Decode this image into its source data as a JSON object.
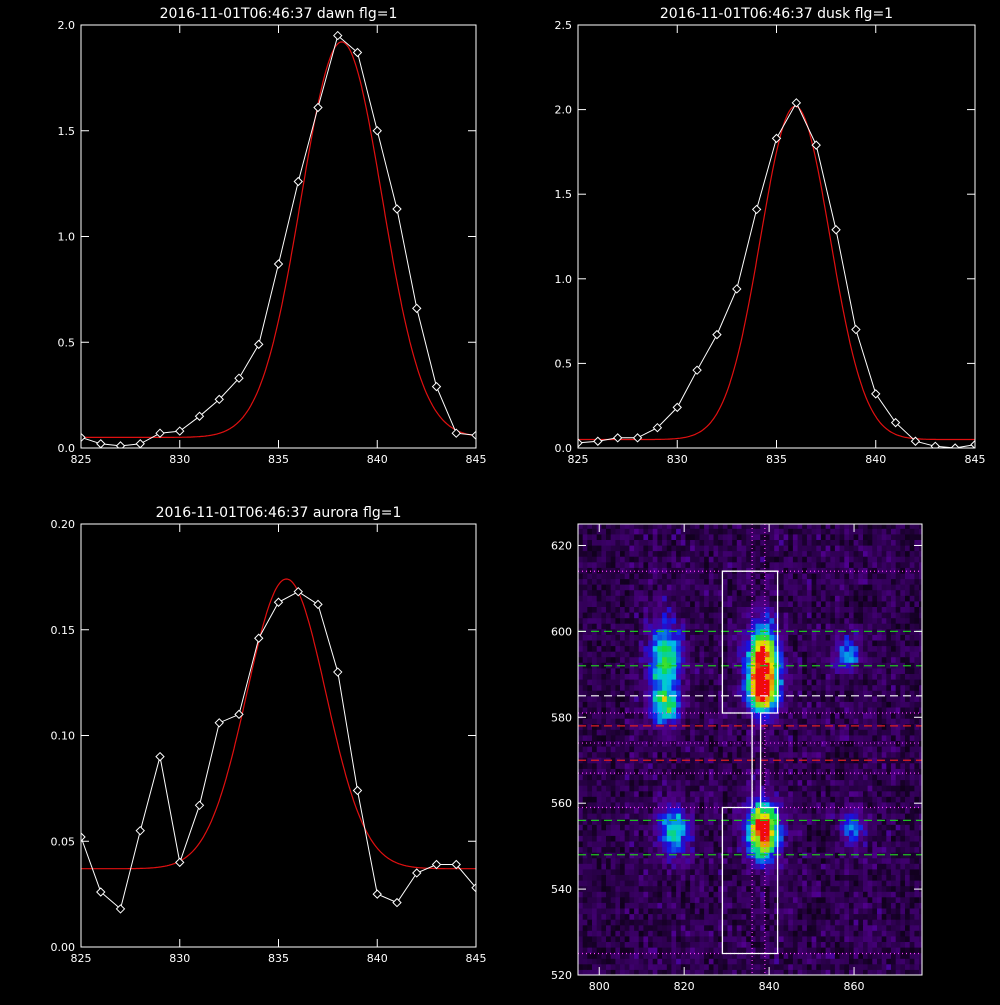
{
  "chart_data": [
    {
      "type": "line",
      "title": "2016-11-01T06:46:37 dawn flg=1",
      "xlim": [
        825,
        845
      ],
      "ylim": [
        0.0,
        2.0
      ],
      "xticks": [
        "825",
        "830",
        "835",
        "840",
        "845"
      ],
      "yticks": [
        "0.0",
        "0.5",
        "1.0",
        "1.5",
        "2.0"
      ],
      "colors": {
        "data": "#ffffff",
        "fit": "#e01010",
        "axes": "#ffffff"
      },
      "series": [
        {
          "kind": "data-with-diamonds",
          "x": [
            825,
            826,
            827,
            828,
            829,
            830,
            831,
            832,
            833,
            834,
            835,
            836,
            837,
            838,
            839,
            840,
            841,
            842,
            843,
            844,
            845
          ],
          "y": [
            0.05,
            0.02,
            0.01,
            0.02,
            0.07,
            0.08,
            0.15,
            0.23,
            0.33,
            0.49,
            0.87,
            1.26,
            1.61,
            1.95,
            1.87,
            1.5,
            1.13,
            0.66,
            0.29,
            0.07,
            0.06
          ]
        },
        {
          "kind": "gaussian-fit",
          "amplitude": 1.87,
          "center": 838.2,
          "sigma": 2.05,
          "baseline": 0.05
        }
      ]
    },
    {
      "type": "line",
      "title": "2016-11-01T06:46:37 dusk flg=1",
      "xlim": [
        825,
        845
      ],
      "ylim": [
        0.0,
        2.5
      ],
      "xticks": [
        "825",
        "830",
        "835",
        "840",
        "845"
      ],
      "yticks": [
        "0.0",
        "0.5",
        "1.0",
        "1.5",
        "2.0",
        "2.5"
      ],
      "colors": {
        "data": "#ffffff",
        "fit": "#e01010",
        "axes": "#ffffff"
      },
      "series": [
        {
          "kind": "data-with-diamonds",
          "x": [
            825,
            826,
            827,
            828,
            829,
            830,
            831,
            832,
            833,
            834,
            835,
            836,
            837,
            838,
            839,
            840,
            841,
            842,
            843,
            844,
            845
          ],
          "y": [
            0.03,
            0.04,
            0.06,
            0.06,
            0.12,
            0.24,
            0.46,
            0.67,
            0.94,
            1.41,
            1.83,
            2.04,
            1.79,
            1.29,
            0.7,
            0.32,
            0.15,
            0.04,
            0.01,
            0.0,
            0.02
          ]
        },
        {
          "kind": "gaussian-fit",
          "amplitude": 1.97,
          "center": 835.95,
          "sigma": 1.75,
          "baseline": 0.05
        }
      ]
    },
    {
      "type": "line",
      "title": "2016-11-01T06:46:37 aurora flg=1",
      "xlim": [
        825,
        845
      ],
      "ylim": [
        0.0,
        0.2
      ],
      "xticks": [
        "825",
        "830",
        "835",
        "840",
        "845"
      ],
      "yticks": [
        "0.00",
        "0.05",
        "0.10",
        "0.15",
        "0.20"
      ],
      "colors": {
        "data": "#ffffff",
        "fit": "#e01010",
        "axes": "#ffffff"
      },
      "series": [
        {
          "kind": "data-with-diamonds",
          "x": [
            825,
            826,
            827,
            828,
            829,
            830,
            831,
            832,
            833,
            834,
            835,
            836,
            837,
            838,
            839,
            840,
            841,
            842,
            843,
            844,
            845
          ],
          "y": [
            0.052,
            0.026,
            0.018,
            0.055,
            0.09,
            0.04,
            0.067,
            0.106,
            0.11,
            0.146,
            0.163,
            0.168,
            0.162,
            0.13,
            0.074,
            0.025,
            0.021,
            0.035,
            0.039,
            0.039,
            0.028
          ]
        },
        {
          "kind": "gaussian-fit",
          "amplitude": 0.137,
          "center": 835.4,
          "sigma": 2.0,
          "baseline": 0.037
        }
      ]
    },
    {
      "type": "heatmap",
      "title": "",
      "xlim": [
        795,
        876
      ],
      "ylim": [
        520,
        625
      ],
      "xticks": [
        "800",
        "820",
        "840",
        "860"
      ],
      "yticks": [
        "520",
        "540",
        "560",
        "580",
        "600",
        "620"
      ],
      "colors": {
        "axes": "#ffffff",
        "box": "#ffffff",
        "green_lines": "#20c020",
        "red_lines": "#e02020",
        "dotted": "#ff40ff"
      },
      "blobs": [
        {
          "x": 815,
          "y": 593,
          "sx": 2.5,
          "sy": 6,
          "amp": 0.55
        },
        {
          "x": 815,
          "y": 582,
          "sx": 2.5,
          "sy": 3,
          "amp": 0.45
        },
        {
          "x": 838,
          "y": 592,
          "sx": 2.5,
          "sy": 6,
          "amp": 0.95
        },
        {
          "x": 838,
          "y": 585,
          "sx": 2.5,
          "sy": 3,
          "amp": 0.6
        },
        {
          "x": 858,
          "y": 594,
          "sx": 2,
          "sy": 3,
          "amp": 0.35
        },
        {
          "x": 817,
          "y": 553,
          "sx": 2.5,
          "sy": 4,
          "amp": 0.5
        },
        {
          "x": 838,
          "y": 553,
          "sx": 2.5,
          "sy": 4.5,
          "amp": 1.0
        },
        {
          "x": 859,
          "y": 554,
          "sx": 2,
          "sy": 3,
          "amp": 0.3
        }
      ],
      "green_dashed_y": [
        600,
        592,
        556,
        548
      ],
      "white_dashed_y": [
        585
      ],
      "red_dashed_y": [
        578,
        570
      ],
      "magenta_dotted_y": [
        614,
        581,
        574,
        567,
        559,
        525
      ],
      "magenta_dotted_x": [
        836,
        839
      ],
      "white_box_path": [
        [
          829,
          614
        ],
        [
          842,
          614
        ],
        [
          842,
          581
        ],
        [
          838,
          581
        ],
        [
          838,
          559
        ],
        [
          842,
          559
        ],
        [
          842,
          525
        ],
        [
          829,
          525
        ],
        [
          829,
          559
        ],
        [
          836,
          559
        ],
        [
          836,
          581
        ],
        [
          829,
          581
        ]
      ]
    }
  ]
}
